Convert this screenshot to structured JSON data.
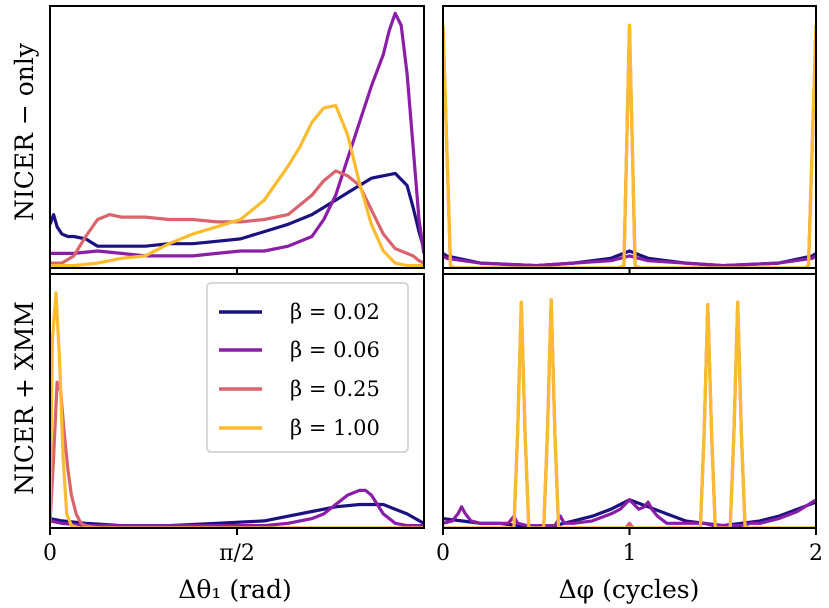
{
  "colors": {
    "b002": "#1b1280",
    "b006": "#8a1ea6",
    "b025": "#d9646e",
    "b100": "#fbbb2e"
  },
  "legend": [
    "β = 0.02",
    "β = 0.06",
    "β = 0.25",
    "β = 1.00"
  ],
  "row_labels": {
    "top": "NICER − only",
    "bottom": "NICER + XMM"
  },
  "chart_data": [
    {
      "panel": "top-left",
      "type": "line",
      "xlabel": "",
      "xlim": [
        0,
        3.14159
      ],
      "ylim": [
        0,
        1.08
      ],
      "series": [
        {
          "name": "β = 0.02",
          "color": "#1b1280",
          "x": [
            0,
            0.03,
            0.06,
            0.1,
            0.15,
            0.2,
            0.3,
            0.4,
            0.5,
            0.6,
            0.8,
            1.0,
            1.2,
            1.4,
            1.6,
            1.8,
            2.0,
            2.2,
            2.4,
            2.5,
            2.6,
            2.7,
            2.8,
            2.9,
            3.0,
            3.05,
            3.1,
            3.14
          ],
          "y": [
            0.18,
            0.22,
            0.17,
            0.14,
            0.13,
            0.13,
            0.12,
            0.09,
            0.09,
            0.09,
            0.09,
            0.1,
            0.1,
            0.11,
            0.12,
            0.15,
            0.18,
            0.22,
            0.28,
            0.31,
            0.34,
            0.37,
            0.38,
            0.39,
            0.34,
            0.25,
            0.15,
            0.08
          ]
        },
        {
          "name": "β = 0.06",
          "color": "#8a1ea6",
          "x": [
            0,
            0.2,
            0.4,
            0.6,
            0.8,
            1.0,
            1.2,
            1.4,
            1.6,
            1.8,
            2.0,
            2.2,
            2.3,
            2.4,
            2.5,
            2.6,
            2.7,
            2.8,
            2.85,
            2.9,
            2.95,
            3.0,
            3.05,
            3.1,
            3.14
          ],
          "y": [
            0.06,
            0.06,
            0.07,
            0.06,
            0.05,
            0.05,
            0.05,
            0.06,
            0.07,
            0.07,
            0.09,
            0.13,
            0.2,
            0.3,
            0.45,
            0.6,
            0.75,
            0.88,
            0.98,
            1.05,
            1.0,
            0.8,
            0.5,
            0.2,
            0.06
          ]
        },
        {
          "name": "β = 0.25",
          "color": "#d9646e",
          "x": [
            0,
            0.1,
            0.2,
            0.3,
            0.4,
            0.5,
            0.6,
            0.8,
            1.0,
            1.2,
            1.4,
            1.6,
            1.8,
            2.0,
            2.1,
            2.2,
            2.3,
            2.4,
            2.5,
            2.6,
            2.7,
            2.8,
            2.9,
            3.0,
            3.05,
            3.1,
            3.14
          ],
          "y": [
            0.02,
            0.02,
            0.05,
            0.13,
            0.2,
            0.22,
            0.21,
            0.21,
            0.2,
            0.2,
            0.19,
            0.19,
            0.2,
            0.22,
            0.26,
            0.3,
            0.36,
            0.4,
            0.38,
            0.34,
            0.24,
            0.14,
            0.08,
            0.06,
            0.05,
            0.03,
            0.02
          ]
        },
        {
          "name": "β = 1.00",
          "color": "#fbbb2e",
          "x": [
            0,
            0.2,
            0.4,
            0.6,
            0.8,
            1.0,
            1.2,
            1.4,
            1.6,
            1.8,
            1.9,
            2.0,
            2.1,
            2.2,
            2.3,
            2.4,
            2.5,
            2.6,
            2.7,
            2.8,
            2.9,
            3.0,
            3.14
          ],
          "y": [
            0.01,
            0.01,
            0.02,
            0.04,
            0.05,
            0.1,
            0.14,
            0.17,
            0.2,
            0.28,
            0.35,
            0.42,
            0.5,
            0.6,
            0.66,
            0.67,
            0.55,
            0.35,
            0.18,
            0.07,
            0.02,
            0.01,
            0.01
          ]
        }
      ]
    },
    {
      "panel": "top-right",
      "type": "line",
      "xlabel": "",
      "xlim": [
        0,
        2
      ],
      "ylim": [
        0,
        1.08
      ],
      "series": [
        {
          "name": "β = 0.02",
          "color": "#1b1280",
          "x": [
            0,
            0.02,
            0.2,
            0.5,
            0.7,
            0.9,
            1.0,
            1.1,
            1.3,
            1.5,
            1.8,
            1.98,
            2.0
          ],
          "y": [
            0.06,
            0.05,
            0.02,
            0.01,
            0.02,
            0.04,
            0.07,
            0.04,
            0.02,
            0.01,
            0.02,
            0.05,
            0.06
          ]
        },
        {
          "name": "β = 0.06",
          "color": "#8a1ea6",
          "x": [
            0,
            0.02,
            0.2,
            0.5,
            0.7,
            0.9,
            1.0,
            1.1,
            1.3,
            1.5,
            1.8,
            1.98,
            2.0
          ],
          "y": [
            0.05,
            0.04,
            0.02,
            0.01,
            0.02,
            0.03,
            0.05,
            0.03,
            0.02,
            0.01,
            0.02,
            0.04,
            0.05
          ]
        },
        {
          "name": "β = 0.25",
          "color": "#d9646e",
          "x": [
            0,
            0.04,
            0.06,
            0.94,
            0.97,
            1.0,
            1.03,
            1.06,
            1.94,
            1.96,
            2.0
          ],
          "y": [
            1.0,
            0.01,
            0.0,
            0.0,
            0.01,
            1.0,
            0.01,
            0.0,
            0.0,
            0.01,
            1.0
          ]
        },
        {
          "name": "β = 1.00",
          "color": "#fbbb2e",
          "x": [
            0,
            0.04,
            0.06,
            0.94,
            0.97,
            1.0,
            1.03,
            1.06,
            1.94,
            1.96,
            2.0
          ],
          "y": [
            1.0,
            0.01,
            0.0,
            0.0,
            0.01,
            1.0,
            0.01,
            0.0,
            0.0,
            0.01,
            1.0
          ]
        }
      ]
    },
    {
      "panel": "bottom-left",
      "type": "line",
      "xlabel": "Δθ₁ (rad)",
      "xlim": [
        0,
        3.14159
      ],
      "ylim": [
        0,
        1.08
      ],
      "xticks": [
        0,
        1.5708
      ],
      "xticklabels": [
        "0",
        "π/2"
      ],
      "series": [
        {
          "name": "β = 0.02",
          "color": "#1b1280",
          "x": [
            0,
            0.1,
            0.3,
            0.6,
            1.0,
            1.4,
            1.8,
            2.0,
            2.2,
            2.4,
            2.6,
            2.8,
            2.9,
            3.0,
            3.14
          ],
          "y": [
            0.04,
            0.03,
            0.02,
            0.01,
            0.01,
            0.02,
            0.03,
            0.05,
            0.07,
            0.09,
            0.1,
            0.1,
            0.08,
            0.06,
            0.02
          ]
        },
        {
          "name": "β = 0.06",
          "color": "#8a1ea6",
          "x": [
            0,
            0.1,
            0.3,
            0.6,
            1.0,
            1.4,
            1.8,
            2.0,
            2.2,
            2.3,
            2.4,
            2.5,
            2.6,
            2.65,
            2.7,
            2.8,
            2.9,
            3.0,
            3.14
          ],
          "y": [
            0.03,
            0.02,
            0.01,
            0.01,
            0.01,
            0.01,
            0.01,
            0.02,
            0.04,
            0.06,
            0.1,
            0.14,
            0.16,
            0.16,
            0.14,
            0.06,
            0.02,
            0.01,
            0.01
          ]
        },
        {
          "name": "β = 0.25",
          "color": "#d9646e",
          "x": [
            0,
            0.03,
            0.06,
            0.09,
            0.12,
            0.15,
            0.18,
            0.22,
            0.26,
            0.3,
            0.4,
            0.6,
            1.0,
            1.5,
            2.0,
            2.5,
            3.0,
            3.14
          ],
          "y": [
            0.02,
            0.3,
            0.62,
            0.58,
            0.4,
            0.25,
            0.14,
            0.06,
            0.02,
            0.01,
            0.0,
            0.0,
            0.0,
            0.0,
            0.0,
            0.0,
            0.0,
            0.0
          ]
        },
        {
          "name": "β = 1.00",
          "color": "#fbbb2e",
          "x": [
            0,
            0.02,
            0.05,
            0.08,
            0.11,
            0.14,
            0.18,
            0.25,
            0.4,
            1.0,
            2.0,
            3.14
          ],
          "y": [
            0.05,
            0.8,
            1.0,
            0.72,
            0.3,
            0.06,
            0.01,
            0.0,
            0.0,
            0.0,
            0.0,
            0.0
          ]
        }
      ]
    },
    {
      "panel": "bottom-right",
      "type": "line",
      "xlabel": "Δφ (cycles)",
      "xlim": [
        0,
        2
      ],
      "ylim": [
        0,
        1.08
      ],
      "xticks": [
        0,
        1,
        2
      ],
      "xticklabels": [
        "0",
        "1",
        "2"
      ],
      "series": [
        {
          "name": "β = 0.02",
          "color": "#1b1280",
          "x": [
            0,
            0.1,
            0.2,
            0.3,
            0.4,
            0.5,
            0.6,
            0.7,
            0.8,
            0.9,
            1.0,
            1.1,
            1.2,
            1.3,
            1.4,
            1.5,
            1.6,
            1.7,
            1.8,
            1.9,
            2.0
          ],
          "y": [
            0.04,
            0.03,
            0.02,
            0.02,
            0.01,
            0.01,
            0.01,
            0.03,
            0.05,
            0.08,
            0.12,
            0.09,
            0.06,
            0.03,
            0.02,
            0.01,
            0.02,
            0.03,
            0.05,
            0.08,
            0.11
          ]
        },
        {
          "name": "β = 0.06",
          "color": "#8a1ea6",
          "x": [
            0,
            0.05,
            0.08,
            0.1,
            0.12,
            0.15,
            0.2,
            0.3,
            0.35,
            0.38,
            0.4,
            0.45,
            0.5,
            0.55,
            0.6,
            0.63,
            0.65,
            0.7,
            0.8,
            0.9,
            0.95,
            1.0,
            1.05,
            1.08,
            1.1,
            1.12,
            1.15,
            1.2,
            1.3,
            1.35,
            1.4,
            1.45,
            1.5,
            1.55,
            1.6,
            1.65,
            1.7,
            1.8,
            1.9,
            2.0
          ],
          "y": [
            0.02,
            0.03,
            0.06,
            0.09,
            0.06,
            0.03,
            0.02,
            0.02,
            0.02,
            0.05,
            0.02,
            0.01,
            0.01,
            0.01,
            0.01,
            0.05,
            0.02,
            0.02,
            0.03,
            0.06,
            0.08,
            0.12,
            0.08,
            0.09,
            0.11,
            0.08,
            0.05,
            0.02,
            0.02,
            0.02,
            0.02,
            0.01,
            0.01,
            0.01,
            0.01,
            0.02,
            0.02,
            0.04,
            0.07,
            0.12
          ]
        },
        {
          "name": "β = 0.25",
          "color": "#d9646e",
          "x": [
            0,
            0.38,
            0.4,
            0.42,
            0.44,
            0.46,
            0.54,
            0.56,
            0.58,
            0.6,
            0.62,
            0.98,
            1.0,
            1.02,
            1.38,
            1.4,
            1.42,
            1.44,
            1.46,
            1.54,
            1.56,
            1.58,
            1.6,
            1.62,
            2.0
          ],
          "y": [
            0.0,
            0.0,
            0.4,
            0.96,
            0.4,
            0.0,
            0.0,
            0.4,
            0.97,
            0.4,
            0.0,
            0.0,
            0.02,
            0.0,
            0.0,
            0.4,
            0.95,
            0.4,
            0.0,
            0.0,
            0.4,
            0.96,
            0.4,
            0.0,
            0.0
          ]
        },
        {
          "name": "β = 1.00",
          "color": "#fbbb2e",
          "x": [
            0,
            0.38,
            0.4,
            0.42,
            0.44,
            0.46,
            0.54,
            0.56,
            0.58,
            0.6,
            0.62,
            1.0,
            1.38,
            1.4,
            1.42,
            1.44,
            1.46,
            1.54,
            1.56,
            1.58,
            1.6,
            1.62,
            2.0
          ],
          "y": [
            0.0,
            0.0,
            0.4,
            0.96,
            0.4,
            0.0,
            0.0,
            0.4,
            0.97,
            0.4,
            0.0,
            0.0,
            0.0,
            0.4,
            0.95,
            0.4,
            0.0,
            0.0,
            0.4,
            0.96,
            0.4,
            0.0,
            0.0
          ]
        }
      ]
    }
  ]
}
